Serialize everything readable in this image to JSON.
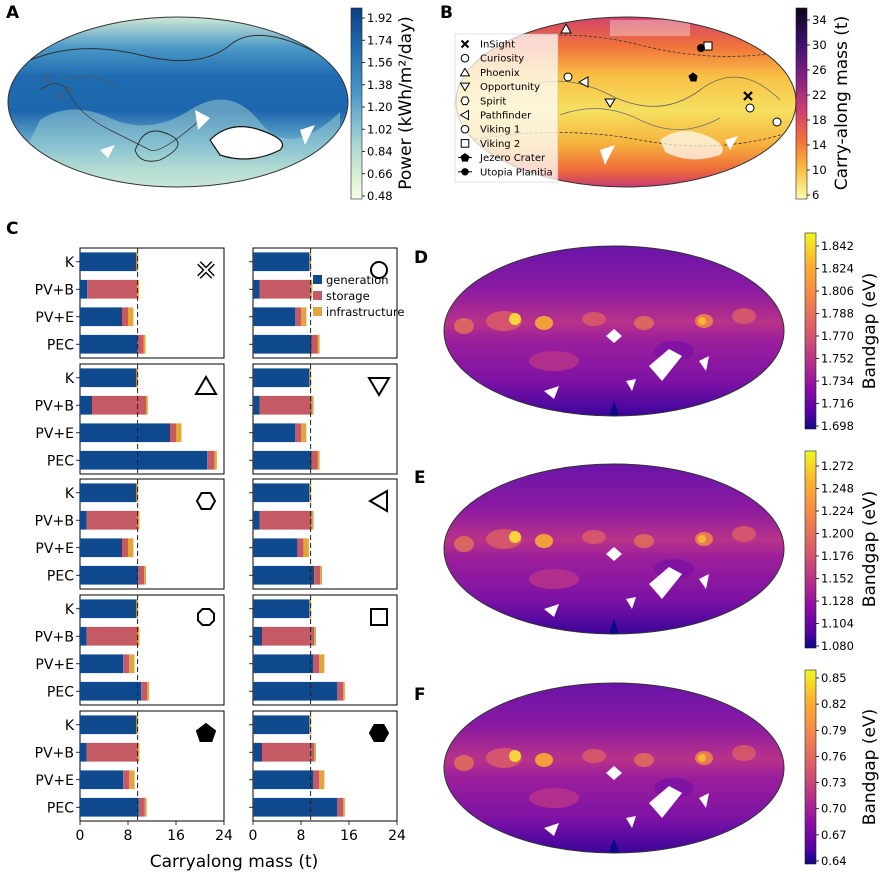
{
  "panels": {
    "A": {
      "letter": "A",
      "colorbar": {
        "label": "Power (kWh/m²/day)",
        "ticks": [
          "1.92",
          "1.74",
          "1.56",
          "1.38",
          "1.20",
          "1.02",
          "0.84",
          "0.66",
          "0.48"
        ],
        "colors": [
          "#0b3c86",
          "#1f6bb0",
          "#4d9bc9",
          "#8cc3d9",
          "#c0e2cf",
          "#e3f3d4",
          "#f7fce9"
        ]
      }
    },
    "B": {
      "letter": "B",
      "colorbar": {
        "label": "Carry-along mass (t)",
        "ticks": [
          "34",
          "30",
          "26",
          "22",
          "18",
          "14",
          "10",
          "6"
        ],
        "colors": [
          "#0c0617",
          "#3b0f6e",
          "#7b2382",
          "#bc3a72",
          "#e8613d",
          "#f7a23a",
          "#fae25c",
          "#fcfdb3"
        ]
      },
      "legend": [
        {
          "label": "InSight",
          "icon": "cross-marker-icon"
        },
        {
          "label": "Curiosity",
          "icon": "circle-marker-icon"
        },
        {
          "label": "Phoenix",
          "icon": "triangle-up-marker-icon"
        },
        {
          "label": "Opportunity",
          "icon": "triangle-down-marker-icon"
        },
        {
          "label": "Spirit",
          "icon": "hexagon-marker-icon"
        },
        {
          "label": "Pathfinder",
          "icon": "triangle-left-marker-icon"
        },
        {
          "label": "Viking 1",
          "icon": "octagon-marker-icon"
        },
        {
          "label": "Viking 2",
          "icon": "square-marker-icon"
        },
        {
          "label": "Jezero Crater",
          "icon": "pentagon-filled-marker-icon"
        },
        {
          "label": "Utopia Planitia",
          "icon": "hexagon-filled-marker-icon"
        }
      ]
    },
    "C": {
      "letter": "C",
      "xlabel": "Carryalong mass (t)",
      "xticks": [
        "0",
        "8",
        "16",
        "24"
      ],
      "legend": [
        {
          "label": "generation",
          "color": "#0f4a8f"
        },
        {
          "label": "storage",
          "color": "#c55a64"
        },
        {
          "label": "infrastructure",
          "color": "#e3a43a"
        }
      ]
    },
    "D": {
      "letter": "D",
      "colorbar": {
        "label": "Bandgap (eV)",
        "ticks": [
          "1.842",
          "1.824",
          "1.806",
          "1.788",
          "1.770",
          "1.752",
          "1.734",
          "1.716",
          "1.698"
        ],
        "colors": [
          "#f0f921",
          "#fdb32f",
          "#f48849",
          "#db5c68",
          "#b83289",
          "#8b0aa5",
          "#5302a3",
          "#0d0887"
        ]
      }
    },
    "E": {
      "letter": "E",
      "colorbar": {
        "label": "Bandgap (eV)",
        "ticks": [
          "1.272",
          "1.248",
          "1.224",
          "1.200",
          "1.176",
          "1.152",
          "1.128",
          "1.104",
          "1.080"
        ],
        "colors": [
          "#f0f921",
          "#fdb32f",
          "#f48849",
          "#db5c68",
          "#b83289",
          "#8b0aa5",
          "#5302a3",
          "#0d0887"
        ]
      }
    },
    "F": {
      "letter": "F",
      "colorbar": {
        "label": "Bandgap (eV)",
        "ticks": [
          "0.85",
          "0.82",
          "0.79",
          "0.76",
          "0.73",
          "0.70",
          "0.67",
          "0.64"
        ],
        "colors": [
          "#f0f921",
          "#fdb32f",
          "#f48849",
          "#db5c68",
          "#b83289",
          "#8b0aa5",
          "#5302a3",
          "#0d0887"
        ]
      }
    }
  },
  "chart_data": {
    "type": "bar",
    "orientation": "horizontal",
    "stacked": true,
    "categories": [
      "K",
      "PV+B",
      "PV+E",
      "PEC"
    ],
    "xlabel": "Carryalong mass (t)",
    "xlim": [
      0,
      24
    ],
    "xticks": [
      0,
      8,
      16,
      24
    ],
    "series_names": [
      "generation",
      "storage",
      "infrastructure"
    ],
    "subplots": [
      {
        "site": "InSight",
        "marker": "cross",
        "reference": 9.6,
        "values": {
          "K": [
            9.4,
            0,
            0.3
          ],
          "PV+B": [
            1.2,
            8.3,
            0.3
          ],
          "PV+E": [
            7.0,
            1.0,
            0.9
          ],
          "PEC": [
            9.6,
            1.0,
            0.3
          ]
        }
      },
      {
        "site": "Curiosity",
        "marker": "circle",
        "reference": 9.6,
        "values": {
          "K": [
            9.4,
            0,
            0.3
          ],
          "PV+B": [
            1.1,
            8.5,
            0.3
          ],
          "PV+E": [
            7.0,
            1.0,
            0.9
          ],
          "PEC": [
            9.8,
            1.0,
            0.3
          ]
        }
      },
      {
        "site": "Phoenix",
        "marker": "triangle-up",
        "reference": 9.6,
        "values": {
          "K": [
            9.4,
            0,
            0.3
          ],
          "PV+B": [
            2.0,
            9.0,
            0.3
          ],
          "PV+E": [
            15.0,
            1.0,
            0.9
          ],
          "PEC": [
            21.2,
            1.2,
            0.4
          ]
        }
      },
      {
        "site": "Opportunity",
        "marker": "triangle-down",
        "reference": 9.6,
        "values": {
          "K": [
            9.4,
            0,
            0.3
          ],
          "PV+B": [
            1.1,
            8.7,
            0.3
          ],
          "PV+E": [
            7.0,
            1.0,
            0.9
          ],
          "PEC": [
            9.8,
            1.0,
            0.3
          ]
        }
      },
      {
        "site": "Spirit",
        "marker": "hexagon",
        "reference": 9.6,
        "values": {
          "K": [
            9.4,
            0,
            0.3
          ],
          "PV+B": [
            1.1,
            8.5,
            0.3
          ],
          "PV+E": [
            7.0,
            1.0,
            0.9
          ],
          "PEC": [
            9.7,
            1.0,
            0.3
          ]
        }
      },
      {
        "site": "Pathfinder",
        "marker": "triangle-left",
        "reference": 9.6,
        "values": {
          "K": [
            9.4,
            0,
            0.3
          ],
          "PV+B": [
            1.1,
            8.7,
            0.3
          ],
          "PV+E": [
            7.4,
            1.0,
            0.9
          ],
          "PEC": [
            10.2,
            1.0,
            0.3
          ]
        }
      },
      {
        "site": "Viking 1",
        "marker": "octagon",
        "reference": 9.6,
        "values": {
          "K": [
            9.4,
            0,
            0.3
          ],
          "PV+B": [
            1.1,
            8.5,
            0.3
          ],
          "PV+E": [
            7.2,
            1.0,
            0.9
          ],
          "PEC": [
            10.2,
            1.0,
            0.3
          ]
        }
      },
      {
        "site": "Viking 2",
        "marker": "square",
        "reference": 9.6,
        "values": {
          "K": [
            9.4,
            0,
            0.3
          ],
          "PV+B": [
            1.5,
            8.7,
            0.3
          ],
          "PV+E": [
            10.0,
            1.0,
            0.9
          ],
          "PEC": [
            14.0,
            1.0,
            0.3
          ]
        }
      },
      {
        "site": "Jezero Crater",
        "marker": "pentagon-filled",
        "reference": 9.6,
        "values": {
          "K": [
            9.4,
            0,
            0.3
          ],
          "PV+B": [
            1.1,
            8.5,
            0.3
          ],
          "PV+E": [
            7.2,
            1.0,
            0.9
          ],
          "PEC": [
            9.8,
            1.0,
            0.3
          ]
        }
      },
      {
        "site": "Utopia Planitia",
        "marker": "hexagon-filled",
        "reference": 9.6,
        "values": {
          "K": [
            9.4,
            0,
            0.3
          ],
          "PV+B": [
            1.5,
            8.7,
            0.3
          ],
          "PV+E": [
            10.0,
            1.0,
            0.9
          ],
          "PEC": [
            14.0,
            1.0,
            0.3
          ]
        }
      }
    ]
  }
}
